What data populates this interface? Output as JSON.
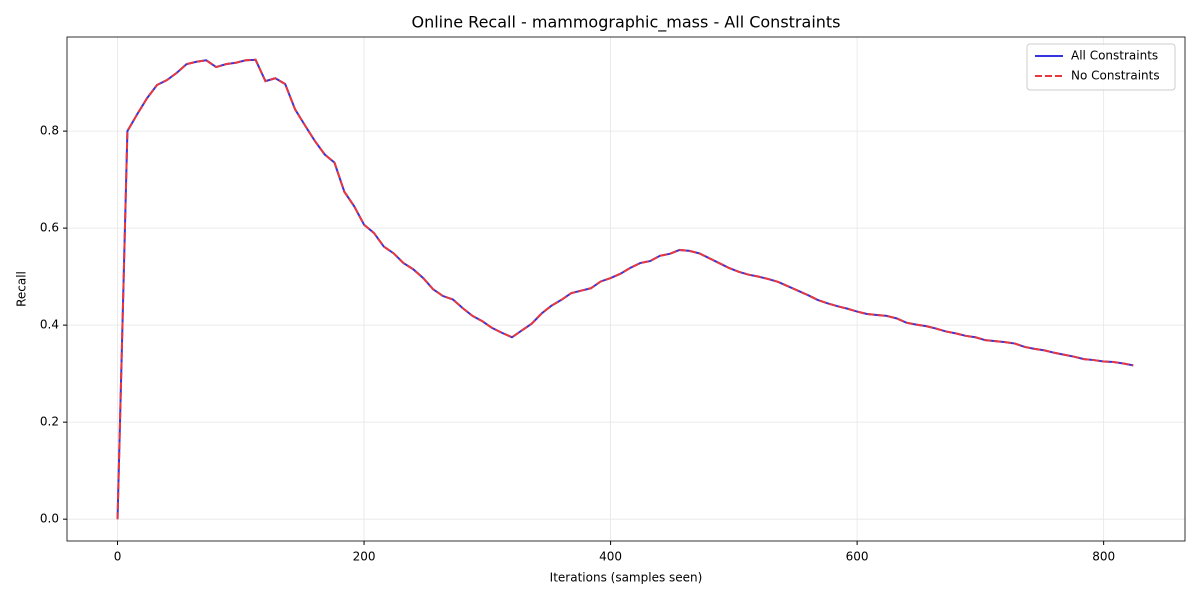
{
  "chart_data": {
    "type": "line",
    "title": "Online Recall - mammographic_mass - All Constraints",
    "xlabel": "Iterations (samples seen)",
    "ylabel": "Recall",
    "x": [
      0,
      8,
      16,
      24,
      32,
      40,
      48,
      56,
      64,
      72,
      80,
      88,
      96,
      104,
      112,
      120,
      128,
      136,
      144,
      152,
      160,
      168,
      176,
      184,
      192,
      200,
      208,
      216,
      224,
      232,
      240,
      248,
      256,
      264,
      272,
      280,
      288,
      296,
      304,
      312,
      320,
      328,
      336,
      344,
      352,
      360,
      368,
      376,
      384,
      392,
      400,
      408,
      416,
      424,
      432,
      440,
      448,
      456,
      464,
      472,
      480,
      488,
      496,
      504,
      512,
      520,
      528,
      536,
      544,
      552,
      560,
      568,
      576,
      584,
      592,
      600,
      608,
      616,
      624,
      632,
      640,
      648,
      656,
      664,
      672,
      680,
      688,
      696,
      704,
      712,
      720,
      728,
      736,
      744,
      752,
      760,
      768,
      776,
      784,
      792,
      800,
      808,
      816,
      824
    ],
    "series": [
      {
        "name": "All Constraints",
        "color": "#3535e0",
        "linestyle": "solid",
        "values": [
          0,
          0.8,
          0.835,
          0.868,
          0.895,
          0.905,
          0.92,
          0.938,
          0.943,
          0.946,
          0.932,
          0.938,
          0.941,
          0.946,
          0.947,
          0.903,
          0.909,
          0.897,
          0.845,
          0.812,
          0.78,
          0.752,
          0.735,
          0.675,
          0.645,
          0.607,
          0.59,
          0.562,
          0.548,
          0.528,
          0.515,
          0.497,
          0.474,
          0.46,
          0.453,
          0.435,
          0.419,
          0.408,
          0.394,
          0.384,
          0.375,
          0.389,
          0.403,
          0.424,
          0.44,
          0.452,
          0.466,
          0.471,
          0.476,
          0.49,
          0.497,
          0.506,
          0.518,
          0.528,
          0.532,
          0.543,
          0.547,
          0.555,
          0.553,
          0.548,
          0.538,
          0.528,
          0.518,
          0.51,
          0.504,
          0.5,
          0.495,
          0.489,
          0.48,
          0.471,
          0.462,
          0.452,
          0.445,
          0.439,
          0.434,
          0.428,
          0.423,
          0.421,
          0.419,
          0.414,
          0.405,
          0.401,
          0.398,
          0.393,
          0.387,
          0.383,
          0.378,
          0.375,
          0.369,
          0.367,
          0.365,
          0.362,
          0.355,
          0.351,
          0.348,
          0.343,
          0.339,
          0.335,
          0.33,
          0.328,
          0.325,
          0.324,
          0.321,
          0.317
        ]
      },
      {
        "name": "No Constraints",
        "color": "#e8383d",
        "linestyle": "dashed",
        "values": [
          0,
          0.8,
          0.835,
          0.868,
          0.895,
          0.905,
          0.92,
          0.938,
          0.943,
          0.946,
          0.932,
          0.938,
          0.941,
          0.946,
          0.947,
          0.903,
          0.909,
          0.897,
          0.845,
          0.812,
          0.78,
          0.752,
          0.735,
          0.675,
          0.645,
          0.607,
          0.59,
          0.562,
          0.548,
          0.528,
          0.515,
          0.497,
          0.474,
          0.46,
          0.453,
          0.435,
          0.419,
          0.408,
          0.394,
          0.384,
          0.375,
          0.389,
          0.403,
          0.424,
          0.44,
          0.452,
          0.466,
          0.471,
          0.476,
          0.49,
          0.497,
          0.506,
          0.518,
          0.528,
          0.532,
          0.543,
          0.547,
          0.555,
          0.553,
          0.548,
          0.538,
          0.528,
          0.518,
          0.51,
          0.504,
          0.5,
          0.495,
          0.489,
          0.48,
          0.471,
          0.462,
          0.452,
          0.445,
          0.439,
          0.434,
          0.428,
          0.423,
          0.421,
          0.419,
          0.414,
          0.405,
          0.401,
          0.398,
          0.393,
          0.387,
          0.383,
          0.378,
          0.375,
          0.369,
          0.367,
          0.365,
          0.362,
          0.355,
          0.351,
          0.348,
          0.343,
          0.339,
          0.335,
          0.33,
          0.328,
          0.325,
          0.324,
          0.321,
          0.317
        ]
      }
    ],
    "xlim": [
      -41,
      866
    ],
    "xticks": [
      0,
      200,
      400,
      600,
      800
    ],
    "ylim": [
      -0.045,
      0.994
    ],
    "yticks": [
      {
        "value": 0,
        "label": "0.0"
      },
      0.2,
      0.4,
      0.6,
      0.8
    ],
    "grid": true,
    "legend": "upper right"
  }
}
